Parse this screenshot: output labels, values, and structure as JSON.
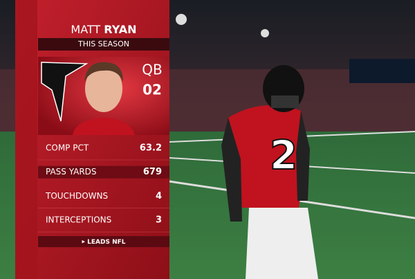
{
  "graphic": {
    "first_name": "MATT",
    "last_name": "RYAN",
    "subtitle": "THIS SEASON",
    "position": "QB",
    "number": "02",
    "stats": [
      {
        "label": "COMP PCT",
        "value": "63.2"
      },
      {
        "label": "PASS YARDS",
        "value": "679"
      },
      {
        "label": "TOUCHDOWNS",
        "value": "4"
      },
      {
        "label": "INTERCEPTIONS",
        "value": "3"
      }
    ],
    "footer": "LEADS NFL"
  },
  "scene": {
    "jersey_number": "2"
  }
}
